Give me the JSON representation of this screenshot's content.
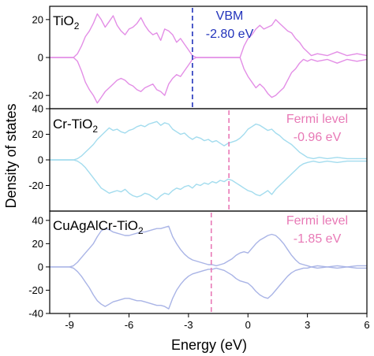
{
  "chart_data": {
    "type": "line",
    "xlabel": "Energy (eV)",
    "ylabel": "Density of states",
    "xlim": [
      -10,
      6
    ],
    "xticks": [
      "-9",
      "-6",
      "-3",
      "0",
      "3",
      "6"
    ],
    "panels": [
      {
        "label_main": "TiO",
        "label_sub": "2",
        "color": "#e38ee6",
        "ylim": [
          -27,
          27
        ],
        "yticks": [
          {
            "value": 20,
            "label": "20"
          },
          {
            "value": 0,
            "label": "0"
          },
          {
            "value": -20,
            "label": "-20"
          }
        ],
        "marker": {
          "x": -2.8,
          "color": "#2233bb",
          "label_line1": "VBM",
          "label_line2": "-2.80 eV"
        },
        "series": [
          {
            "x": [
              -10,
              -8.8,
              -8.6,
              -8.4,
              -8.2,
              -8.0,
              -7.8,
              -7.6,
              -7.4,
              -7.2,
              -7.0,
              -6.8,
              -6.6,
              -6.4,
              -6.2,
              -6.0,
              -5.8,
              -5.6,
              -5.4,
              -5.2,
              -5.0,
              -4.8,
              -4.6,
              -4.4,
              -4.2,
              -4.0,
              -3.8,
              -3.6,
              -3.4,
              -3.2,
              -3.0,
              -2.8,
              -2.6,
              -2.0,
              -1.0,
              -0.4,
              -0.2,
              0.0,
              0.2,
              0.4,
              0.6,
              0.8,
              1.0,
              1.2,
              1.4,
              1.6,
              1.8,
              2.0,
              2.2,
              2.4,
              2.6,
              2.8,
              3.0,
              3.2,
              3.5,
              4.0,
              4.5,
              5.0,
              5.5,
              6.0
            ],
            "y": [
              0,
              0,
              2,
              6,
              11,
              14,
              18,
              23,
              20,
              16,
              19,
              22,
              17,
              14,
              12,
              15,
              16,
              18,
              21,
              17,
              14,
              12,
              13,
              9,
              15,
              14,
              12,
              8,
              10,
              7,
              4,
              1,
              0,
              0,
              0,
              0,
              6,
              10,
              12,
              15,
              17,
              15,
              16,
              17,
              20,
              18,
              16,
              14,
              13,
              10,
              8,
              5,
              3,
              1,
              2,
              1,
              3,
              1,
              2,
              1
            ]
          },
          {
            "x": [
              -10,
              -8.8,
              -8.6,
              -8.4,
              -8.2,
              -8.0,
              -7.8,
              -7.6,
              -7.4,
              -7.2,
              -7.0,
              -6.8,
              -6.6,
              -6.4,
              -6.2,
              -6.0,
              -5.8,
              -5.6,
              -5.4,
              -5.2,
              -5.0,
              -4.8,
              -4.6,
              -4.4,
              -4.2,
              -4.0,
              -3.8,
              -3.6,
              -3.4,
              -3.2,
              -3.0,
              -2.8,
              -2.6,
              -2.0,
              -1.0,
              -0.4,
              -0.2,
              0.0,
              0.2,
              0.4,
              0.6,
              0.8,
              1.0,
              1.2,
              1.4,
              1.6,
              1.8,
              2.0,
              2.2,
              2.4,
              2.6,
              2.8,
              3.0,
              3.2,
              3.5,
              4.0,
              4.5,
              5.0,
              5.5,
              6.0
            ],
            "y": [
              0,
              0,
              -2,
              -7,
              -13,
              -17,
              -20,
              -24,
              -21,
              -18,
              -16,
              -14,
              -12,
              -11,
              -12,
              -14,
              -15,
              -17,
              -18,
              -16,
              -15,
              -14,
              -17,
              -18,
              -20,
              -14,
              -11,
              -9,
              -10,
              -7,
              -4,
              -1,
              0,
              0,
              0,
              0,
              -6,
              -10,
              -13,
              -16,
              -14,
              -16,
              -19,
              -21,
              -20,
              -18,
              -16,
              -12,
              -8,
              -6,
              -3,
              -1,
              -2,
              -1,
              -2,
              -1,
              -3,
              -1,
              -2,
              -1
            ]
          }
        ]
      },
      {
        "label_main": "Cr-TiO",
        "label_sub": "2",
        "color": "#a3dcee",
        "ylim": [
          -40,
          40
        ],
        "yticks": [
          {
            "value": 40,
            "label": "40"
          },
          {
            "value": 20,
            "label": "20"
          },
          {
            "value": 0,
            "label": "0"
          },
          {
            "value": -20,
            "label": "-20"
          }
        ],
        "marker": {
          "x": -0.96,
          "color": "#e879b6",
          "label_line1": "Fermi level",
          "label_line2": "-0.96 eV"
        },
        "series": [
          {
            "x": [
              -10,
              -8.8,
              -8.6,
              -8.4,
              -8.2,
              -8.0,
              -7.8,
              -7.6,
              -7.4,
              -7.2,
              -7.0,
              -6.8,
              -6.6,
              -6.4,
              -6.2,
              -6.0,
              -5.8,
              -5.6,
              -5.4,
              -5.2,
              -5.0,
              -4.8,
              -4.6,
              -4.4,
              -4.2,
              -4.0,
              -3.8,
              -3.6,
              -3.4,
              -3.2,
              -3.0,
              -2.8,
              -2.6,
              -2.4,
              -2.2,
              -2.0,
              -1.8,
              -1.6,
              -1.4,
              -1.2,
              -1.0,
              -0.8,
              -0.6,
              -0.4,
              -0.2,
              0.0,
              0.2,
              0.4,
              0.6,
              0.8,
              1.0,
              1.2,
              1.4,
              1.6,
              1.8,
              2.0,
              2.2,
              2.4,
              2.6,
              2.8,
              3.0,
              3.3,
              3.6,
              4.0,
              4.5,
              5.0,
              5.5,
              6.0
            ],
            "y": [
              0,
              0,
              1,
              3,
              6,
              9,
              12,
              16,
              19,
              22,
              25,
              23,
              24,
              22,
              21,
              23,
              24,
              26,
              27,
              26,
              28,
              29,
              30,
              27,
              29,
              28,
              24,
              22,
              20,
              21,
              18,
              16,
              18,
              17,
              15,
              16,
              14,
              15,
              13,
              11,
              13,
              14,
              15,
              17,
              20,
              24,
              26,
              28,
              27,
              25,
              23,
              24,
              21,
              19,
              16,
              14,
              12,
              9,
              6,
              4,
              2,
              1,
              2,
              1,
              2,
              1,
              1,
              1
            ]
          },
          {
            "x": [
              -10,
              -8.8,
              -8.6,
              -8.4,
              -8.2,
              -8.0,
              -7.8,
              -7.6,
              -7.4,
              -7.2,
              -7.0,
              -6.8,
              -6.6,
              -6.4,
              -6.2,
              -6.0,
              -5.8,
              -5.6,
              -5.4,
              -5.2,
              -5.0,
              -4.8,
              -4.6,
              -4.4,
              -4.2,
              -4.0,
              -3.8,
              -3.6,
              -3.4,
              -3.2,
              -3.0,
              -2.8,
              -2.6,
              -2.4,
              -2.2,
              -2.0,
              -1.8,
              -1.6,
              -1.4,
              -1.2,
              -1.0,
              -0.8,
              -0.6,
              -0.4,
              -0.2,
              0.0,
              0.2,
              0.4,
              0.6,
              0.8,
              1.0,
              1.2,
              1.4,
              1.6,
              1.8,
              2.0,
              2.2,
              2.4,
              2.6,
              2.8,
              3.0,
              3.3,
              3.6,
              4.0,
              4.5,
              5.0,
              5.5,
              6.0
            ],
            "y": [
              0,
              0,
              -1,
              -3,
              -6,
              -10,
              -14,
              -18,
              -22,
              -24,
              -26,
              -25,
              -24,
              -25,
              -23,
              -26,
              -28,
              -29,
              -28,
              -26,
              -27,
              -29,
              -31,
              -28,
              -26,
              -27,
              -24,
              -22,
              -23,
              -21,
              -20,
              -22,
              -19,
              -20,
              -18,
              -19,
              -17,
              -18,
              -16,
              -17,
              -15,
              -16,
              -18,
              -20,
              -22,
              -24,
              -25,
              -27,
              -28,
              -26,
              -24,
              -27,
              -23,
              -20,
              -17,
              -14,
              -11,
              -8,
              -5,
              -3,
              -2,
              -1,
              -2,
              -1,
              -2,
              -1,
              -1,
              -1
            ]
          }
        ]
      },
      {
        "label_main": "CuAgAlCr-TiO",
        "label_sub": "2",
        "color": "#a9b4e6",
        "ylim": [
          -40,
          48
        ],
        "yticks": [
          {
            "value": 40,
            "label": "40"
          },
          {
            "value": 20,
            "label": "20"
          },
          {
            "value": 0,
            "label": "0"
          },
          {
            "value": -20,
            "label": "-20"
          },
          {
            "value": -40,
            "label": "-40"
          }
        ],
        "marker": {
          "x": -1.85,
          "color": "#e879b6",
          "label_line1": "Fermi level",
          "label_line2": "-1.85 eV"
        },
        "series": [
          {
            "x": [
              -10,
              -9.0,
              -8.8,
              -8.6,
              -8.4,
              -8.2,
              -8.0,
              -7.8,
              -7.6,
              -7.4,
              -7.2,
              -7.0,
              -6.8,
              -6.6,
              -6.4,
              -6.2,
              -6.0,
              -5.8,
              -5.6,
              -5.4,
              -5.2,
              -5.0,
              -4.8,
              -4.6,
              -4.4,
              -4.2,
              -4.0,
              -3.8,
              -3.6,
              -3.4,
              -3.2,
              -3.0,
              -2.8,
              -2.6,
              -2.4,
              -2.2,
              -2.0,
              -1.8,
              -1.6,
              -1.4,
              -1.2,
              -1.0,
              -0.8,
              -0.6,
              -0.4,
              -0.2,
              0.0,
              0.2,
              0.4,
              0.6,
              0.8,
              1.0,
              1.2,
              1.4,
              1.6,
              1.8,
              2.0,
              2.2,
              2.4,
              2.6,
              2.8,
              3.0,
              3.2,
              3.5,
              4.0,
              4.5,
              5.0,
              5.5,
              6.0
            ],
            "y": [
              0,
              0,
              1,
              4,
              8,
              12,
              16,
              20,
              26,
              31,
              33,
              32,
              30,
              29,
              28,
              27,
              27,
              28,
              29,
              30,
              30,
              31,
              32,
              33,
              33,
              34,
              35,
              26,
              20,
              15,
              11,
              8,
              6,
              5,
              4,
              3,
              2,
              2,
              1,
              2,
              3,
              5,
              7,
              10,
              12,
              13,
              12,
              16,
              20,
              23,
              25,
              27,
              28,
              27,
              24,
              20,
              15,
              10,
              6,
              3,
              2,
              1,
              0,
              1,
              0,
              1,
              0,
              1,
              1
            ]
          },
          {
            "x": [
              -10,
              -9.0,
              -8.8,
              -8.6,
              -8.4,
              -8.2,
              -8.0,
              -7.8,
              -7.6,
              -7.4,
              -7.2,
              -7.0,
              -6.8,
              -6.6,
              -6.4,
              -6.2,
              -6.0,
              -5.8,
              -5.6,
              -5.4,
              -5.2,
              -5.0,
              -4.8,
              -4.6,
              -4.4,
              -4.2,
              -4.0,
              -3.8,
              -3.6,
              -3.4,
              -3.2,
              -3.0,
              -2.8,
              -2.6,
              -2.4,
              -2.2,
              -2.0,
              -1.8,
              -1.6,
              -1.4,
              -1.2,
              -1.0,
              -0.8,
              -0.6,
              -0.4,
              -0.2,
              0.0,
              0.2,
              0.4,
              0.6,
              0.8,
              1.0,
              1.2,
              1.4,
              1.6,
              1.8,
              2.0,
              2.2,
              2.4,
              2.6,
              2.8,
              3.0,
              3.2,
              3.5,
              4.0,
              4.5,
              5.0,
              5.5,
              6.0
            ],
            "y": [
              0,
              0,
              -1,
              -4,
              -8,
              -13,
              -18,
              -24,
              -29,
              -32,
              -34,
              -32,
              -30,
              -29,
              -28,
              -27,
              -27,
              -28,
              -29,
              -29,
              -30,
              -31,
              -32,
              -33,
              -33,
              -34,
              -36,
              -27,
              -20,
              -15,
              -11,
              -8,
              -6,
              -5,
              -4,
              -3,
              -2,
              -2,
              -1,
              -2,
              -3,
              -5,
              -7,
              -10,
              -12,
              -13,
              -14,
              -17,
              -21,
              -24,
              -26,
              -27,
              -24,
              -20,
              -16,
              -12,
              -8,
              -5,
              -3,
              -2,
              -1,
              -1,
              0,
              -1,
              0,
              -1,
              0,
              -1,
              -1
            ]
          }
        ]
      }
    ]
  }
}
